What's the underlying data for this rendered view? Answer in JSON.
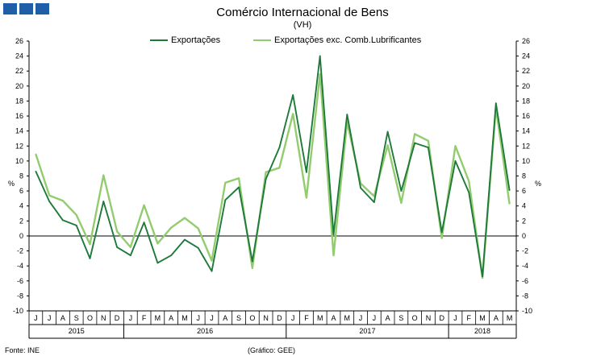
{
  "header": {
    "logo": "logo-blocks"
  },
  "chart_data": {
    "type": "line",
    "title": "Comércio Internacional de Bens",
    "subtitle": "(VH)",
    "ylabel_left": "%",
    "ylabel_right": "%",
    "ylim": [
      -10,
      26
    ],
    "yticks": [
      26,
      24,
      22,
      20,
      18,
      16,
      14,
      12,
      10,
      8,
      6,
      4,
      2,
      0,
      -2,
      -4,
      -6,
      -8,
      -10
    ],
    "x": [
      "J",
      "J",
      "A",
      "S",
      "O",
      "N",
      "D",
      "J",
      "F",
      "M",
      "A",
      "M",
      "J",
      "J",
      "A",
      "S",
      "O",
      "N",
      "D",
      "J",
      "F",
      "M",
      "A",
      "M",
      "J",
      "J",
      "A",
      "S",
      "O",
      "N",
      "D",
      "J",
      "F",
      "M",
      "A",
      "M"
    ],
    "years": [
      {
        "label": "2015",
        "start": 0,
        "end": 6
      },
      {
        "label": "2016",
        "start": 7,
        "end": 18
      },
      {
        "label": "2017",
        "start": 19,
        "end": 30
      },
      {
        "label": "2018",
        "start": 31,
        "end": 35
      }
    ],
    "series": [
      {
        "name": "Exportações",
        "color": "#1e7a3a",
        "values": [
          8.6,
          4.6,
          2.1,
          1.4,
          -3.0,
          4.6,
          -1.5,
          -2.6,
          1.8,
          -3.6,
          -2.6,
          -0.5,
          -1.6,
          -4.7,
          4.8,
          6.5,
          -3.4,
          7.6,
          11.8,
          18.8,
          8.5,
          24.0,
          0.2,
          16.2,
          6.4,
          4.5,
          13.9,
          6.0,
          12.4,
          11.8,
          0.5,
          10.0,
          5.8,
          -5.4,
          17.7,
          6.1
        ]
      },
      {
        "name": "Exportações exc. Comb.Lubrificantes",
        "color": "#92cc6e",
        "values": [
          10.9,
          5.4,
          4.7,
          2.8,
          -1.1,
          8.1,
          0.6,
          -1.5,
          4.1,
          -1.0,
          1.1,
          2.4,
          1.0,
          -3.3,
          7.1,
          7.7,
          -4.3,
          8.5,
          9.1,
          16.3,
          5.1,
          21.6,
          -2.6,
          15.2,
          7.0,
          5.3,
          12.1,
          4.4,
          13.6,
          12.7,
          -0.3,
          12.0,
          7.3,
          -5.6,
          17.1,
          4.3
        ]
      }
    ],
    "grid": false,
    "legend_position": "top-center"
  },
  "footer": {
    "source": "Fonte: INE",
    "credit": "(Gráfico:  GEE)"
  }
}
